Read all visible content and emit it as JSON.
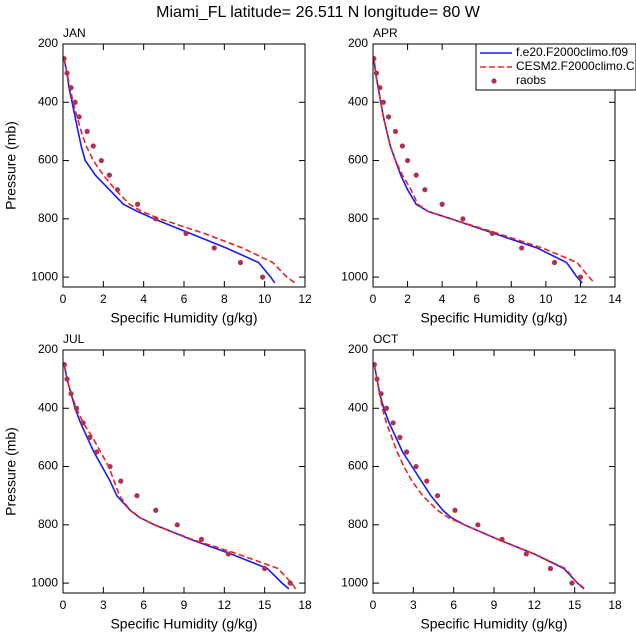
{
  "title": "Miami_FL  latitude= 26.511 N longitude= 80 W",
  "chart_data": [
    {
      "type": "line",
      "title": "JAN",
      "xlabel": "Specific Humidity (g/kg)",
      "ylabel": "Pressure (mb)",
      "xlim": [
        0,
        12
      ],
      "xticks": [
        0,
        2,
        4,
        6,
        8,
        10,
        12
      ],
      "ylim": [
        1034,
        200
      ],
      "yticks": [
        200,
        400,
        600,
        800,
        1000
      ],
      "series": [
        {
          "name": "f.e20.F2000climo.f09",
          "color": "#1a1aff",
          "style": "solid",
          "levels": [
            250,
            300,
            350,
            400,
            450,
            500,
            550,
            600,
            650,
            700,
            750,
            775,
            800,
            850,
            900,
            950,
            1000,
            1020
          ],
          "values": [
            0.05,
            0.2,
            0.3,
            0.45,
            0.6,
            0.75,
            0.9,
            1.1,
            1.6,
            2.3,
            3.0,
            3.7,
            4.5,
            6.3,
            8.1,
            9.7,
            10.3,
            10.5
          ]
        },
        {
          "name": "CESM2.F2000climo.C",
          "color": "#ee2222",
          "style": "dashed",
          "levels": [
            250,
            300,
            350,
            400,
            450,
            500,
            550,
            600,
            650,
            700,
            750,
            775,
            800,
            850,
            900,
            950,
            1000,
            1020
          ],
          "values": [
            0.05,
            0.2,
            0.35,
            0.5,
            0.7,
            0.9,
            1.15,
            1.5,
            2.0,
            2.6,
            3.3,
            3.9,
            4.8,
            7.0,
            8.9,
            10.4,
            11.1,
            11.5
          ]
        },
        {
          "name": "raobs",
          "color": "#b03050",
          "style": "markers",
          "levels": [
            250,
            300,
            350,
            400,
            450,
            500,
            550,
            600,
            650,
            700,
            750,
            800,
            850,
            900,
            950,
            1000
          ],
          "values": [
            0.05,
            0.2,
            0.4,
            0.6,
            0.8,
            1.2,
            1.5,
            1.9,
            2.3,
            2.7,
            3.7,
            4.6,
            6.1,
            7.5,
            8.8,
            9.9
          ]
        }
      ]
    },
    {
      "type": "line",
      "title": "APR",
      "xlabel": "Specific Humidity (g/kg)",
      "xlim": [
        0,
        14
      ],
      "xticks": [
        0,
        2,
        4,
        6,
        8,
        10,
        12,
        14
      ],
      "ylim": [
        1034,
        200
      ],
      "yticks": [
        200,
        400,
        600,
        800,
        1000
      ],
      "legend": "upper right",
      "series": [
        {
          "name": "f.e20.F2000climo.f09",
          "color": "#1a1aff",
          "style": "solid",
          "levels": [
            250,
            300,
            350,
            400,
            450,
            500,
            550,
            600,
            650,
            700,
            750,
            775,
            800,
            850,
            900,
            950,
            1000,
            1020
          ],
          "values": [
            0.05,
            0.15,
            0.3,
            0.45,
            0.6,
            0.8,
            1.0,
            1.3,
            1.6,
            2.0,
            2.5,
            3.2,
            4.5,
            7.0,
            9.5,
            11.2,
            11.8,
            12.1
          ]
        },
        {
          "name": "CESM2.F2000climo.C",
          "color": "#ee2222",
          "style": "dashed",
          "levels": [
            250,
            300,
            350,
            400,
            450,
            500,
            550,
            600,
            650,
            700,
            750,
            775,
            800,
            850,
            900,
            950,
            1000,
            1020
          ],
          "values": [
            0.05,
            0.15,
            0.3,
            0.45,
            0.6,
            0.8,
            1.0,
            1.3,
            1.7,
            2.2,
            2.6,
            3.2,
            4.5,
            7.2,
            9.8,
            11.8,
            12.5,
            12.8
          ]
        },
        {
          "name": "raobs",
          "color": "#b03050",
          "style": "markers",
          "levels": [
            250,
            300,
            350,
            400,
            450,
            500,
            550,
            600,
            650,
            700,
            750,
            800,
            850,
            900,
            950,
            1000
          ],
          "values": [
            0.05,
            0.2,
            0.4,
            0.6,
            0.9,
            1.3,
            1.7,
            2.0,
            2.5,
            3.0,
            4.0,
            5.2,
            6.9,
            8.6,
            10.5,
            12.0
          ]
        }
      ]
    },
    {
      "type": "line",
      "title": "JUL",
      "xlabel": "Specific Humidity (g/kg)",
      "ylabel": "Pressure (mb)",
      "xlim": [
        0,
        18
      ],
      "xticks": [
        0,
        3,
        6,
        9,
        12,
        15,
        18
      ],
      "ylim": [
        1034,
        200
      ],
      "yticks": [
        200,
        400,
        600,
        800,
        1000
      ],
      "series": [
        {
          "name": "f.e20.F2000climo.f09",
          "color": "#1a1aff",
          "style": "solid",
          "levels": [
            250,
            300,
            350,
            400,
            450,
            500,
            550,
            600,
            650,
            700,
            750,
            775,
            800,
            850,
            900,
            950,
            1000,
            1020
          ],
          "values": [
            0.1,
            0.3,
            0.6,
            0.9,
            1.3,
            1.8,
            2.3,
            2.9,
            3.5,
            4.0,
            5.0,
            5.7,
            6.8,
            9.5,
            12.5,
            15.2,
            16.3,
            16.8
          ]
        },
        {
          "name": "CESM2.F2000climo.C",
          "color": "#ee2222",
          "style": "dashed",
          "levels": [
            250,
            300,
            350,
            400,
            450,
            500,
            550,
            600,
            650,
            700,
            750,
            775,
            800,
            850,
            900,
            950,
            1000,
            1020
          ],
          "values": [
            0.1,
            0.3,
            0.6,
            1.0,
            1.5,
            2.2,
            2.8,
            3.4,
            3.8,
            4.2,
            5.0,
            5.7,
            6.8,
            9.6,
            13.0,
            16.0,
            17.0,
            17.3
          ]
        },
        {
          "name": "raobs",
          "color": "#b03050",
          "style": "markers",
          "levels": [
            250,
            300,
            350,
            400,
            450,
            500,
            550,
            600,
            650,
            700,
            750,
            800,
            850,
            900,
            950,
            1000
          ],
          "values": [
            0.1,
            0.3,
            0.6,
            1.0,
            1.5,
            2.0,
            2.5,
            3.5,
            4.3,
            5.5,
            6.9,
            8.5,
            10.3,
            12.3,
            15.0,
            16.9
          ]
        }
      ]
    },
    {
      "type": "line",
      "title": "OCT",
      "xlabel": "Specific Humidity (g/kg)",
      "xlim": [
        0,
        18
      ],
      "xticks": [
        0,
        3,
        6,
        9,
        12,
        15,
        18
      ],
      "ylim": [
        1034,
        200
      ],
      "yticks": [
        200,
        400,
        600,
        800,
        1000
      ],
      "series": [
        {
          "name": "f.e20.F2000climo.f09",
          "color": "#1a1aff",
          "style": "solid",
          "levels": [
            250,
            300,
            350,
            400,
            450,
            500,
            550,
            600,
            650,
            700,
            750,
            775,
            800,
            850,
            900,
            950,
            1000,
            1020
          ],
          "values": [
            0.1,
            0.3,
            0.5,
            0.8,
            1.2,
            1.7,
            2.2,
            2.9,
            3.6,
            4.3,
            5.2,
            5.8,
            6.8,
            9.3,
            12.0,
            14.2,
            15.2,
            15.7
          ]
        },
        {
          "name": "CESM2.F2000climo.C",
          "color": "#ee2222",
          "style": "dashed",
          "levels": [
            250,
            300,
            350,
            400,
            450,
            500,
            550,
            600,
            650,
            700,
            750,
            775,
            800,
            850,
            900,
            950,
            1000,
            1020
          ],
          "values": [
            0.1,
            0.3,
            0.5,
            0.7,
            1.0,
            1.4,
            1.8,
            2.3,
            2.9,
            3.7,
            4.8,
            5.6,
            6.8,
            9.3,
            12.0,
            14.3,
            15.2,
            15.8
          ]
        },
        {
          "name": "raobs",
          "color": "#b03050",
          "style": "markers",
          "levels": [
            250,
            300,
            350,
            400,
            450,
            500,
            550,
            600,
            650,
            700,
            750,
            800,
            850,
            900,
            950,
            1000
          ],
          "values": [
            0.1,
            0.3,
            0.6,
            1.0,
            1.5,
            2.0,
            2.5,
            3.2,
            4.0,
            4.8,
            6.1,
            7.8,
            9.6,
            11.4,
            13.2,
            14.8
          ]
        }
      ]
    }
  ]
}
